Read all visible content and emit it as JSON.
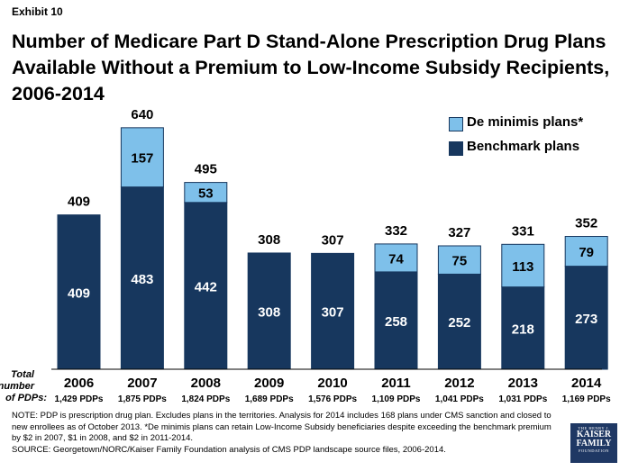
{
  "exhibit_label": "Exhibit 10",
  "title": "Number of Medicare Part D Stand-Alone Prescription Drug Plans Available Without a Premium to Low-Income Subsidy Recipients, 2006-2014",
  "colors": {
    "benchmark": "#17375e",
    "de_minimis": "#7ec0ea",
    "bar_border": "#17375e"
  },
  "legend": {
    "de_minimis_label": "De minimis plans*",
    "benchmark_label": "Benchmark plans"
  },
  "total_label": "Total number of PDPs:",
  "chart_data": {
    "type": "bar",
    "stacked": true,
    "categories": [
      "2006",
      "2007",
      "2008",
      "2009",
      "2010",
      "2011",
      "2012",
      "2013",
      "2014"
    ],
    "series": [
      {
        "name": "Benchmark plans",
        "values": [
          409,
          483,
          442,
          308,
          307,
          258,
          252,
          218,
          273
        ]
      },
      {
        "name": "De minimis plans*",
        "values": [
          0,
          157,
          53,
          0,
          0,
          74,
          75,
          113,
          79
        ]
      }
    ],
    "totals": [
      409,
      640,
      495,
      308,
      307,
      332,
      327,
      331,
      352
    ],
    "total_pdps": [
      "1,429 PDPs",
      "1,875 PDPs",
      "1,824 PDPs",
      "1,689 PDPs",
      "1,576 PDPs",
      "1,109 PDPs",
      "1,041 PDPs",
      "1,031 PDPs",
      "1,169 PDPs"
    ],
    "ylim": [
      0,
      680
    ],
    "legend_position": "top-right"
  },
  "footnote": {
    "note": "NOTE: PDP is prescription drug plan.  Excludes plans in the territories. Analysis for 2014 includes 168 plans under CMS sanction and closed to new enrollees as of October 2013. *De minimis plans can retain Low-Income Subsidy beneficiaries despite exceeding the benchmark premium by $2 in 2007, $1 in 2008, and $2 in 2011-2014.",
    "source": "SOURCE: Georgetown/NORC/Kaiser Family Foundation analysis of CMS PDP landscape source files, 2006-2014."
  },
  "logo": {
    "line1": "THE HENRY J.",
    "line2a": "KAISER",
    "line2b": "FAMILY",
    "line3": "FOUNDATION"
  }
}
